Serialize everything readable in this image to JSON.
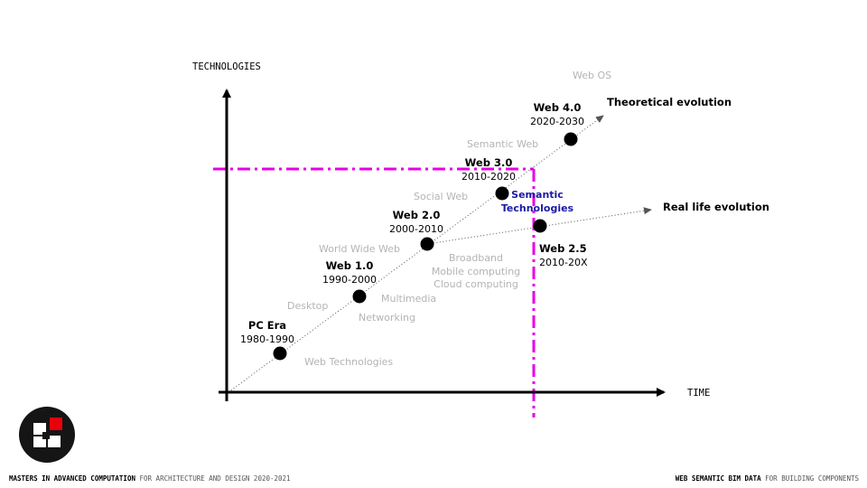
{
  "axes": {
    "y_label": "TECHNOLOGIES",
    "x_label": "TIME"
  },
  "milestones": [
    {
      "id": "pc-era",
      "name": "PC Era",
      "years": "1980-1990"
    },
    {
      "id": "web-1",
      "name": "Web 1.0",
      "years": "1990-2000"
    },
    {
      "id": "web-2",
      "name": "Web 2.0",
      "years": "2000-2010"
    },
    {
      "id": "web-3",
      "name": "Web 3.0",
      "years": "2010-2020"
    },
    {
      "id": "web-4",
      "name": "Web 4.0",
      "years": "2020-2030"
    },
    {
      "id": "web-25",
      "name": "Web 2.5",
      "years": "2010-20X"
    }
  ],
  "technologies": [
    "Web Technologies",
    "Desktop",
    "Multimedia",
    "Networking",
    "World Wide Web",
    "Broadband",
    "Mobile computing",
    "Cloud computing",
    "Social Web",
    "Semantic Web",
    "Web OS"
  ],
  "evolutions": {
    "theoretical": "Theoretical evolution",
    "real_life": "Real life evolution"
  },
  "semantic": {
    "line1": "Semantic",
    "line2": "Technologies"
  },
  "footer": {
    "left_bold": "MASTERS IN ADVANCED COMPUTATION",
    "left_rest": "FOR ARCHITECTURE AND DESIGN 2020-2021",
    "right_bold": "WEB SEMANTIC BIM DATA",
    "right_rest": "FOR BUILDING COMPONENTS"
  },
  "colors": {
    "accent": "#e600e6",
    "semantic": "#1a1aa6",
    "faded": "#b4b4b4",
    "logo_red": "#e8000b"
  },
  "icons": {
    "logo": "bim-blocks-logo-icon"
  }
}
